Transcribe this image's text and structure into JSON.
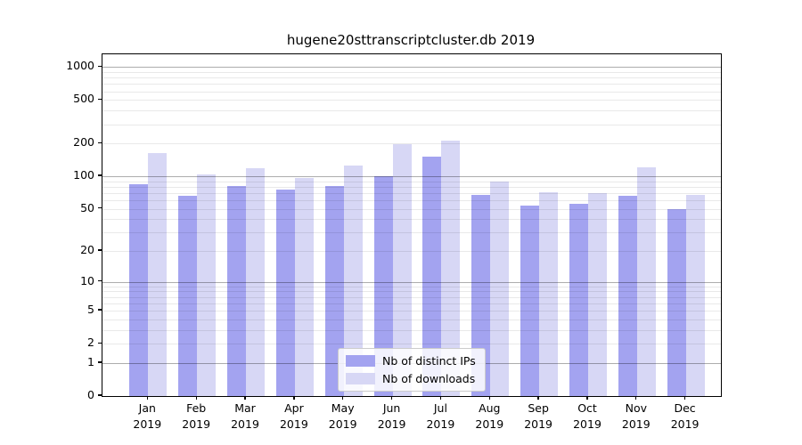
{
  "window": {
    "background_color": "#ffffff"
  },
  "chart_data": {
    "type": "bar",
    "title": "hugene20sttranscriptcluster.db 2019",
    "xlabel": "",
    "ylabel": "",
    "yscale": "log1p",
    "yticks": [
      0,
      1,
      2,
      5,
      10,
      20,
      50,
      100,
      200,
      500,
      1000
    ],
    "ylim": [
      0,
      1300
    ],
    "grid": true,
    "legend_position": "inside-bottom-center",
    "categories": [
      "Jan",
      "Feb",
      "Mar",
      "Apr",
      "May",
      "Jun",
      "Jul",
      "Aug",
      "Sep",
      "Oct",
      "Nov",
      "Dec"
    ],
    "category_year": "2019",
    "series": [
      {
        "name": "Nb of distinct IPs",
        "color": "#a3a3f0",
        "values": [
          85,
          66,
          81,
          75,
          81,
          100,
          151,
          68,
          54,
          56,
          66,
          50
        ]
      },
      {
        "name": "Nb of downloads",
        "color": "#d7d7f5",
        "values": [
          164,
          105,
          118,
          96,
          125,
          198,
          214,
          90,
          71,
          70,
          121,
          68
        ]
      }
    ]
  }
}
